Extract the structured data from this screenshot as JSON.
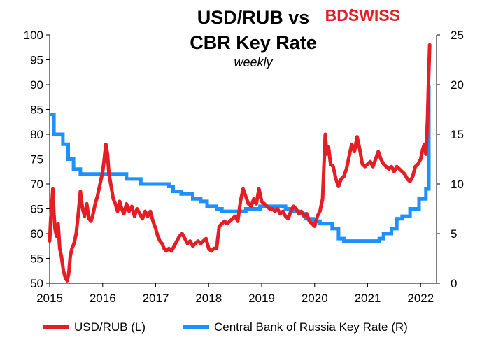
{
  "brand": {
    "part1": "BD",
    "part2": "SWISS"
  },
  "chart_data": {
    "type": "line",
    "title_line1": "USD/RUB vs",
    "title_line2": "CBR Key Rate",
    "subtitle": "weekly",
    "x_ticks": [
      "2015",
      "2016",
      "2017",
      "2018",
      "2019",
      "2020",
      "2021",
      "2022"
    ],
    "xlim": [
      2015.0,
      2022.3
    ],
    "y_left": {
      "lim": [
        50,
        100
      ],
      "ticks": [
        "50",
        "55",
        "60",
        "65",
        "70",
        "75",
        "80",
        "85",
        "90",
        "95",
        "100"
      ]
    },
    "y_right": {
      "lim": [
        0,
        25
      ],
      "ticks": [
        "0",
        "5",
        "10",
        "15",
        "20",
        "25"
      ]
    },
    "grid": false,
    "legend_position": "bottom",
    "series": [
      {
        "name": "USD/RUB (L)",
        "axis": "left",
        "color": "#e31e24",
        "points": [
          [
            2015.0,
            58.5
          ],
          [
            2015.02,
            63.0
          ],
          [
            2015.04,
            65.5
          ],
          [
            2015.06,
            69.0
          ],
          [
            2015.08,
            64.0
          ],
          [
            2015.1,
            61.0
          ],
          [
            2015.13,
            59.5
          ],
          [
            2015.16,
            62.0
          ],
          [
            2015.19,
            57.0
          ],
          [
            2015.22,
            55.5
          ],
          [
            2015.26,
            52.5
          ],
          [
            2015.3,
            51.0
          ],
          [
            2015.33,
            50.5
          ],
          [
            2015.36,
            52.0
          ],
          [
            2015.39,
            55.5
          ],
          [
            2015.42,
            57.0
          ],
          [
            2015.46,
            58.0
          ],
          [
            2015.5,
            60.0
          ],
          [
            2015.54,
            64.0
          ],
          [
            2015.58,
            68.5
          ],
          [
            2015.62,
            65.0
          ],
          [
            2015.66,
            63.5
          ],
          [
            2015.7,
            66.0
          ],
          [
            2015.74,
            63.0
          ],
          [
            2015.78,
            62.5
          ],
          [
            2015.82,
            64.0
          ],
          [
            2015.86,
            66.0
          ],
          [
            2015.9,
            67.5
          ],
          [
            2015.95,
            70.0
          ],
          [
            2016.0,
            72.5
          ],
          [
            2016.03,
            75.0
          ],
          [
            2016.06,
            78.0
          ],
          [
            2016.09,
            76.0
          ],
          [
            2016.12,
            72.0
          ],
          [
            2016.16,
            69.5
          ],
          [
            2016.2,
            67.0
          ],
          [
            2016.24,
            66.0
          ],
          [
            2016.28,
            64.5
          ],
          [
            2016.32,
            66.5
          ],
          [
            2016.36,
            65.0
          ],
          [
            2016.4,
            64.0
          ],
          [
            2016.45,
            66.0
          ],
          [
            2016.5,
            64.5
          ],
          [
            2016.55,
            65.5
          ],
          [
            2016.6,
            63.5
          ],
          [
            2016.65,
            65.0
          ],
          [
            2016.7,
            64.0
          ],
          [
            2016.75,
            63.0
          ],
          [
            2016.8,
            64.5
          ],
          [
            2016.85,
            63.5
          ],
          [
            2016.9,
            64.5
          ],
          [
            2016.95,
            62.5
          ],
          [
            2017.0,
            61.0
          ],
          [
            2017.04,
            59.5
          ],
          [
            2017.08,
            58.5
          ],
          [
            2017.12,
            58.0
          ],
          [
            2017.16,
            57.0
          ],
          [
            2017.2,
            56.5
          ],
          [
            2017.25,
            57.0
          ],
          [
            2017.3,
            56.5
          ],
          [
            2017.35,
            57.5
          ],
          [
            2017.4,
            58.5
          ],
          [
            2017.45,
            59.5
          ],
          [
            2017.5,
            60.0
          ],
          [
            2017.55,
            59.0
          ],
          [
            2017.6,
            58.0
          ],
          [
            2017.65,
            58.5
          ],
          [
            2017.7,
            57.5
          ],
          [
            2017.75,
            58.0
          ],
          [
            2017.8,
            58.5
          ],
          [
            2017.85,
            58.0
          ],
          [
            2017.9,
            58.5
          ],
          [
            2017.95,
            59.0
          ],
          [
            2018.0,
            57.0
          ],
          [
            2018.05,
            56.5
          ],
          [
            2018.1,
            57.0
          ],
          [
            2018.15,
            57.0
          ],
          [
            2018.2,
            61.5
          ],
          [
            2018.25,
            62.0
          ],
          [
            2018.3,
            62.5
          ],
          [
            2018.35,
            62.0
          ],
          [
            2018.4,
            62.5
          ],
          [
            2018.45,
            63.0
          ],
          [
            2018.5,
            63.5
          ],
          [
            2018.55,
            62.5
          ],
          [
            2018.6,
            66.5
          ],
          [
            2018.65,
            69.0
          ],
          [
            2018.7,
            67.5
          ],
          [
            2018.75,
            66.0
          ],
          [
            2018.8,
            65.5
          ],
          [
            2018.85,
            67.0
          ],
          [
            2018.9,
            66.0
          ],
          [
            2018.95,
            69.0
          ],
          [
            2019.0,
            66.5
          ],
          [
            2019.05,
            66.0
          ],
          [
            2019.1,
            65.5
          ],
          [
            2019.15,
            65.0
          ],
          [
            2019.2,
            65.0
          ],
          [
            2019.25,
            64.5
          ],
          [
            2019.3,
            65.0
          ],
          [
            2019.35,
            64.0
          ],
          [
            2019.4,
            64.5
          ],
          [
            2019.45,
            63.5
          ],
          [
            2019.5,
            63.0
          ],
          [
            2019.55,
            64.5
          ],
          [
            2019.6,
            65.5
          ],
          [
            2019.65,
            65.0
          ],
          [
            2019.7,
            64.0
          ],
          [
            2019.75,
            64.5
          ],
          [
            2019.8,
            63.5
          ],
          [
            2019.85,
            64.0
          ],
          [
            2019.9,
            62.5
          ],
          [
            2019.95,
            62.0
          ],
          [
            2020.0,
            61.5
          ],
          [
            2020.05,
            63.5
          ],
          [
            2020.1,
            64.5
          ],
          [
            2020.15,
            67.0
          ],
          [
            2020.2,
            80.0
          ],
          [
            2020.23,
            76.0
          ],
          [
            2020.26,
            77.5
          ],
          [
            2020.3,
            74.0
          ],
          [
            2020.35,
            73.5
          ],
          [
            2020.4,
            71.0
          ],
          [
            2020.45,
            69.5
          ],
          [
            2020.5,
            71.0
          ],
          [
            2020.55,
            71.5
          ],
          [
            2020.6,
            73.0
          ],
          [
            2020.65,
            75.5
          ],
          [
            2020.7,
            78.0
          ],
          [
            2020.75,
            76.5
          ],
          [
            2020.8,
            79.5
          ],
          [
            2020.85,
            77.0
          ],
          [
            2020.9,
            74.0
          ],
          [
            2020.95,
            73.5
          ],
          [
            2021.0,
            74.0
          ],
          [
            2021.05,
            74.5
          ],
          [
            2021.1,
            73.5
          ],
          [
            2021.15,
            75.0
          ],
          [
            2021.2,
            76.5
          ],
          [
            2021.25,
            75.0
          ],
          [
            2021.3,
            74.0
          ],
          [
            2021.35,
            73.5
          ],
          [
            2021.4,
            73.0
          ],
          [
            2021.45,
            73.5
          ],
          [
            2021.5,
            72.5
          ],
          [
            2021.55,
            73.5
          ],
          [
            2021.6,
            73.0
          ],
          [
            2021.65,
            72.5
          ],
          [
            2021.7,
            72.0
          ],
          [
            2021.75,
            71.0
          ],
          [
            2021.8,
            70.5
          ],
          [
            2021.85,
            71.5
          ],
          [
            2021.9,
            73.5
          ],
          [
            2021.95,
            74.0
          ],
          [
            2022.0,
            75.0
          ],
          [
            2022.04,
            77.0
          ],
          [
            2022.07,
            78.0
          ],
          [
            2022.1,
            76.0
          ],
          [
            2022.13,
            83.0
          ],
          [
            2022.15,
            91.0
          ],
          [
            2022.17,
            98.0
          ]
        ]
      },
      {
        "name": "Central Bank of Russia Key Rate (R)",
        "axis": "right",
        "color": "#1e90ff",
        "steps": [
          [
            2015.0,
            17.0
          ],
          [
            2015.08,
            15.0
          ],
          [
            2015.25,
            14.0
          ],
          [
            2015.35,
            12.5
          ],
          [
            2015.45,
            11.5
          ],
          [
            2015.58,
            11.0
          ],
          [
            2016.45,
            10.5
          ],
          [
            2016.72,
            10.0
          ],
          [
            2017.25,
            9.75
          ],
          [
            2017.33,
            9.25
          ],
          [
            2017.48,
            9.0
          ],
          [
            2017.7,
            8.5
          ],
          [
            2017.85,
            8.25
          ],
          [
            2017.97,
            7.75
          ],
          [
            2018.15,
            7.5
          ],
          [
            2018.25,
            7.25
          ],
          [
            2018.7,
            7.5
          ],
          [
            2018.97,
            7.75
          ],
          [
            2019.45,
            7.5
          ],
          [
            2019.57,
            7.25
          ],
          [
            2019.7,
            7.0
          ],
          [
            2019.83,
            6.5
          ],
          [
            2019.97,
            6.25
          ],
          [
            2020.1,
            6.0
          ],
          [
            2020.33,
            5.5
          ],
          [
            2020.45,
            4.5
          ],
          [
            2020.55,
            4.25
          ],
          [
            2021.22,
            4.5
          ],
          [
            2021.3,
            5.0
          ],
          [
            2021.45,
            5.5
          ],
          [
            2021.55,
            6.5
          ],
          [
            2021.65,
            6.75
          ],
          [
            2021.8,
            7.5
          ],
          [
            2021.97,
            8.5
          ],
          [
            2022.1,
            9.5
          ],
          [
            2022.155,
            20.0
          ],
          [
            2022.17,
            20.0
          ]
        ]
      }
    ]
  }
}
